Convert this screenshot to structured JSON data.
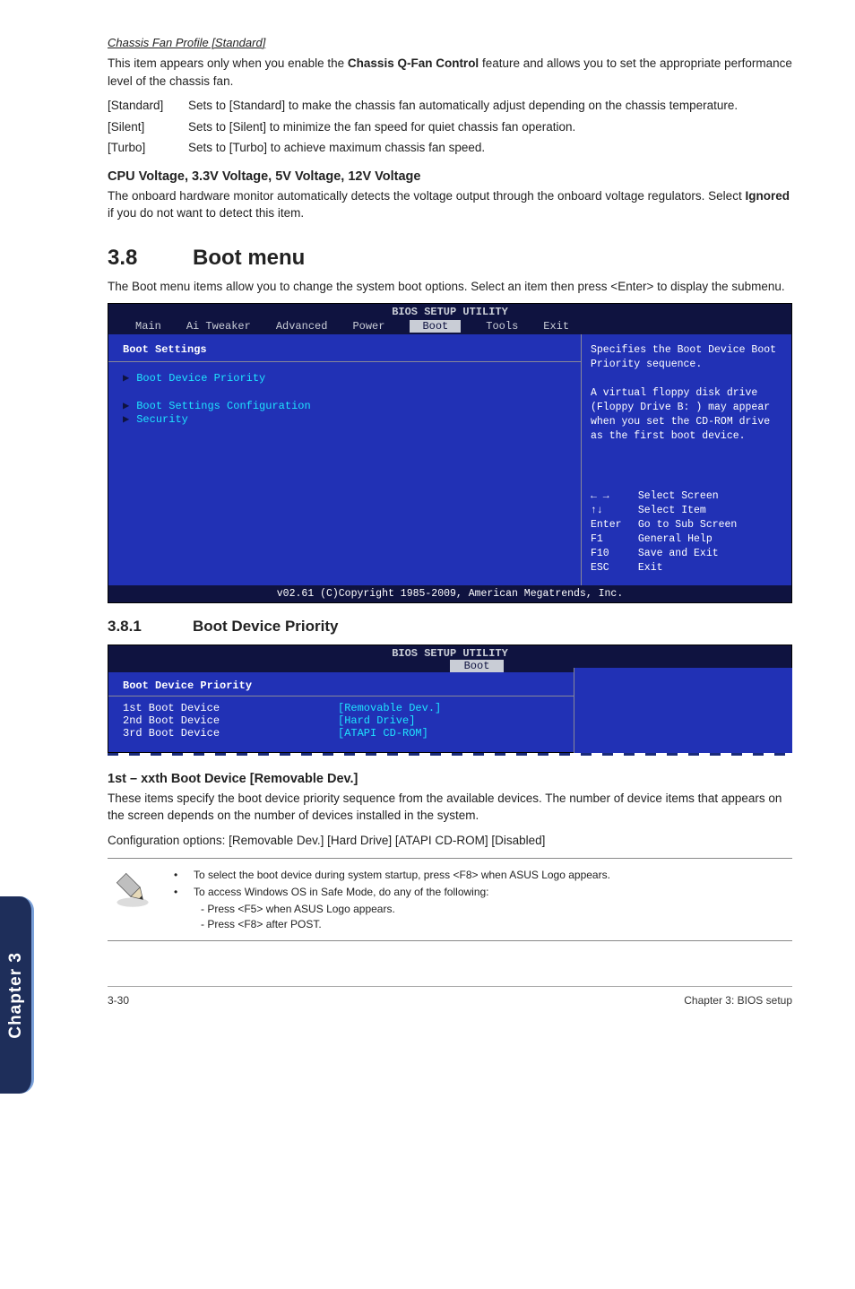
{
  "sidebar": {
    "label": "Chapter 3"
  },
  "section1": {
    "subhead": "Chassis Fan Profile [Standard]",
    "intro": "This item appears only when you enable the <b>Chassis Q-Fan Control</b> feature and allows you to set the appropriate performance level of the chassis fan.",
    "optStandardLabel": "[Standard]",
    "optStandardDesc": "Sets to [Standard] to make the chassis fan automatically adjust depending on the chassis temperature.",
    "optSilentLabel": "[Silent]",
    "optSilentDesc": "Sets to [Silent] to minimize the fan speed for quiet chassis fan operation.",
    "optTurboLabel": "[Turbo]",
    "optTurboDesc": "Sets to [Turbo] to achieve maximum chassis fan speed."
  },
  "cpuVoltage": {
    "heading": "CPU Voltage, 3.3V Voltage, 5V Voltage, 12V Voltage",
    "text": "The onboard hardware monitor automatically detects the voltage output through the onboard voltage regulators. Select <b>Ignored</b> if you do not want to detect this item."
  },
  "bootMenu": {
    "num": "3.8",
    "title": "Boot menu",
    "text": "The Boot menu items allow you to change the system boot options. Select an item then press <Enter> to display the submenu."
  },
  "bios1": {
    "title": "BIOS SETUP UTILITY",
    "tabs": [
      "Main",
      "Ai Tweaker",
      "Advanced",
      "Power",
      "Boot",
      "Tools",
      "Exit"
    ],
    "heading": "Boot Settings",
    "items": [
      "Boot Device Priority",
      "Boot Settings Configuration",
      "Security"
    ],
    "helpTop": "Specifies the Boot Device Boot Priority sequence.\n\nA virtual floppy disk drive (Floppy Drive B: ) may appear when you set the CD-ROM drive as the first boot device.",
    "keys": [
      {
        "sym": "← →",
        "txt": "Select Screen"
      },
      {
        "sym": "↑↓",
        "txt": "Select Item"
      },
      {
        "sym": "Enter",
        "txt": "Go to Sub Screen"
      },
      {
        "sym": "F1",
        "txt": "General Help"
      },
      {
        "sym": "F10",
        "txt": "Save and Exit"
      },
      {
        "sym": "ESC",
        "txt": "Exit"
      }
    ],
    "footer": "v02.61 (C)Copyright 1985-2009, American Megatrends, Inc."
  },
  "bootPriority": {
    "num": "3.8.1",
    "title": "Boot Device Priority"
  },
  "bios2": {
    "title": "BIOS SETUP UTILITY",
    "tab": "Boot",
    "heading": "Boot Device Priority",
    "rows": [
      {
        "k": "1st Boot Device",
        "v": "[Removable Dev.]"
      },
      {
        "k": "2nd Boot Device",
        "v": "[Hard Drive]"
      },
      {
        "k": "3rd Boot Device",
        "v": "[ATAPI CD-ROM]"
      }
    ]
  },
  "firstBoot": {
    "heading": "1st – xxth Boot Device [Removable Dev.]",
    "p1": "These items specify the boot device priority sequence from the available devices. The number of device items that appears on the screen depends on the number of devices installed in the system.",
    "p2": "Configuration options: [Removable Dev.] [Hard Drive] [ATAPI CD-ROM] [Disabled]"
  },
  "note": {
    "b1": "To select the boot device during system startup, press <F8> when ASUS Logo appears.",
    "b2": "To access Windows OS in Safe Mode, do any of the following:",
    "s1": "- Press <F5> when ASUS Logo appears.",
    "s2": "- Press <F8> after POST."
  },
  "footer": {
    "left": "3-30",
    "right": "Chapter 3: BIOS setup"
  }
}
